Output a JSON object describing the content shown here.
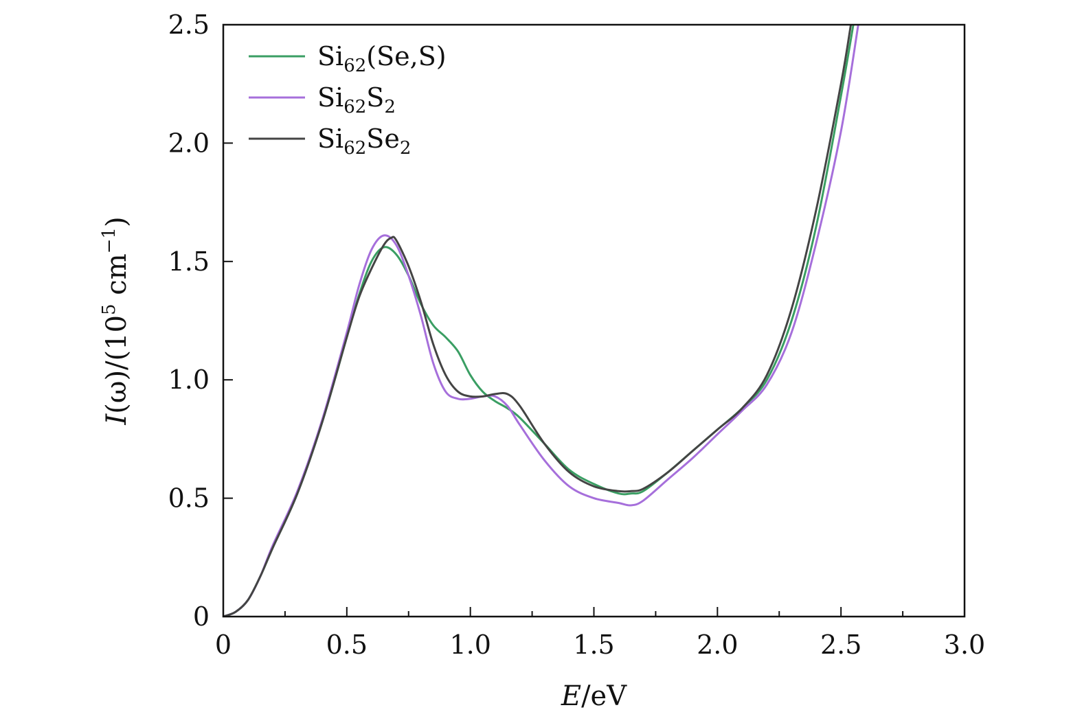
{
  "chart_data": {
    "type": "line",
    "title": "",
    "xlabel": {
      "var": "E",
      "unit": "/eV"
    },
    "ylabel": {
      "var": "I",
      "arg": "(ω)",
      "unit_pre": "/(10",
      "unit_exp": "5",
      "unit_mid": " cm",
      "unit_exp2": "−1",
      "unit_post": ")"
    },
    "xlim": [
      0,
      3.0
    ],
    "ylim": [
      0,
      2.5
    ],
    "xticks": [
      0,
      0.5,
      1.0,
      1.5,
      2.0,
      2.5,
      3.0
    ],
    "xtick_labels": [
      "0",
      "0.5",
      "1.0",
      "1.5",
      "2.0",
      "2.5",
      "3.0"
    ],
    "yticks": [
      0,
      0.5,
      1.0,
      1.5,
      2.0,
      2.5
    ],
    "ytick_labels": [
      "0",
      "0.5",
      "1.0",
      "1.5",
      "2.0",
      "2.5"
    ],
    "legend_position": "top-left",
    "series": [
      {
        "name": "Si62(Se,S)",
        "label_main": "Si",
        "label_sub": "62",
        "label_rest": "(Se,S)",
        "label_sub2": "",
        "color": "#3a9e63",
        "x": [
          0,
          0.05,
          0.1,
          0.15,
          0.2,
          0.3,
          0.4,
          0.5,
          0.55,
          0.6,
          0.65,
          0.7,
          0.75,
          0.8,
          0.85,
          0.9,
          0.95,
          1.0,
          1.05,
          1.1,
          1.15,
          1.2,
          1.3,
          1.4,
          1.5,
          1.6,
          1.65,
          1.7,
          1.8,
          1.9,
          2.0,
          2.1,
          2.2,
          2.3,
          2.4,
          2.5,
          2.55
        ],
        "y": [
          0,
          0.02,
          0.07,
          0.17,
          0.29,
          0.52,
          0.82,
          1.18,
          1.36,
          1.5,
          1.56,
          1.53,
          1.44,
          1.32,
          1.23,
          1.18,
          1.12,
          1.02,
          0.95,
          0.91,
          0.88,
          0.84,
          0.73,
          0.62,
          0.56,
          0.52,
          0.52,
          0.53,
          0.61,
          0.7,
          0.79,
          0.88,
          1.0,
          1.25,
          1.65,
          2.2,
          2.5
        ]
      },
      {
        "name": "Si62S2",
        "label_main": "Si",
        "label_sub": "62",
        "label_rest": "S",
        "label_sub2": "2",
        "color": "#a66fdb",
        "x": [
          0,
          0.05,
          0.1,
          0.15,
          0.2,
          0.3,
          0.4,
          0.5,
          0.55,
          0.6,
          0.65,
          0.7,
          0.75,
          0.8,
          0.85,
          0.9,
          0.95,
          1.0,
          1.05,
          1.1,
          1.15,
          1.2,
          1.3,
          1.4,
          1.5,
          1.6,
          1.65,
          1.7,
          1.8,
          1.9,
          2.0,
          2.1,
          2.2,
          2.3,
          2.4,
          2.5,
          2.57
        ],
        "y": [
          0,
          0.02,
          0.07,
          0.17,
          0.3,
          0.53,
          0.83,
          1.2,
          1.4,
          1.55,
          1.61,
          1.57,
          1.44,
          1.27,
          1.07,
          0.95,
          0.92,
          0.92,
          0.93,
          0.93,
          0.89,
          0.81,
          0.66,
          0.55,
          0.5,
          0.48,
          0.47,
          0.49,
          0.58,
          0.67,
          0.77,
          0.87,
          0.98,
          1.2,
          1.58,
          2.05,
          2.5
        ]
      },
      {
        "name": "Si62Se2",
        "label_main": "Si",
        "label_sub": "62",
        "label_rest": "Se",
        "label_sub2": "2",
        "color": "#444444",
        "x": [
          0,
          0.05,
          0.1,
          0.15,
          0.2,
          0.3,
          0.4,
          0.5,
          0.55,
          0.6,
          0.65,
          0.68,
          0.7,
          0.75,
          0.8,
          0.85,
          0.9,
          0.95,
          1.0,
          1.05,
          1.1,
          1.15,
          1.2,
          1.3,
          1.4,
          1.5,
          1.6,
          1.65,
          1.7,
          1.8,
          1.9,
          2.0,
          2.1,
          2.2,
          2.3,
          2.4,
          2.5,
          2.54
        ],
        "y": [
          0,
          0.02,
          0.07,
          0.17,
          0.29,
          0.52,
          0.82,
          1.18,
          1.35,
          1.47,
          1.57,
          1.6,
          1.59,
          1.48,
          1.33,
          1.15,
          1.02,
          0.95,
          0.93,
          0.93,
          0.94,
          0.94,
          0.89,
          0.73,
          0.61,
          0.55,
          0.53,
          0.53,
          0.54,
          0.61,
          0.7,
          0.79,
          0.88,
          1.02,
          1.3,
          1.72,
          2.25,
          2.5
        ]
      }
    ]
  }
}
